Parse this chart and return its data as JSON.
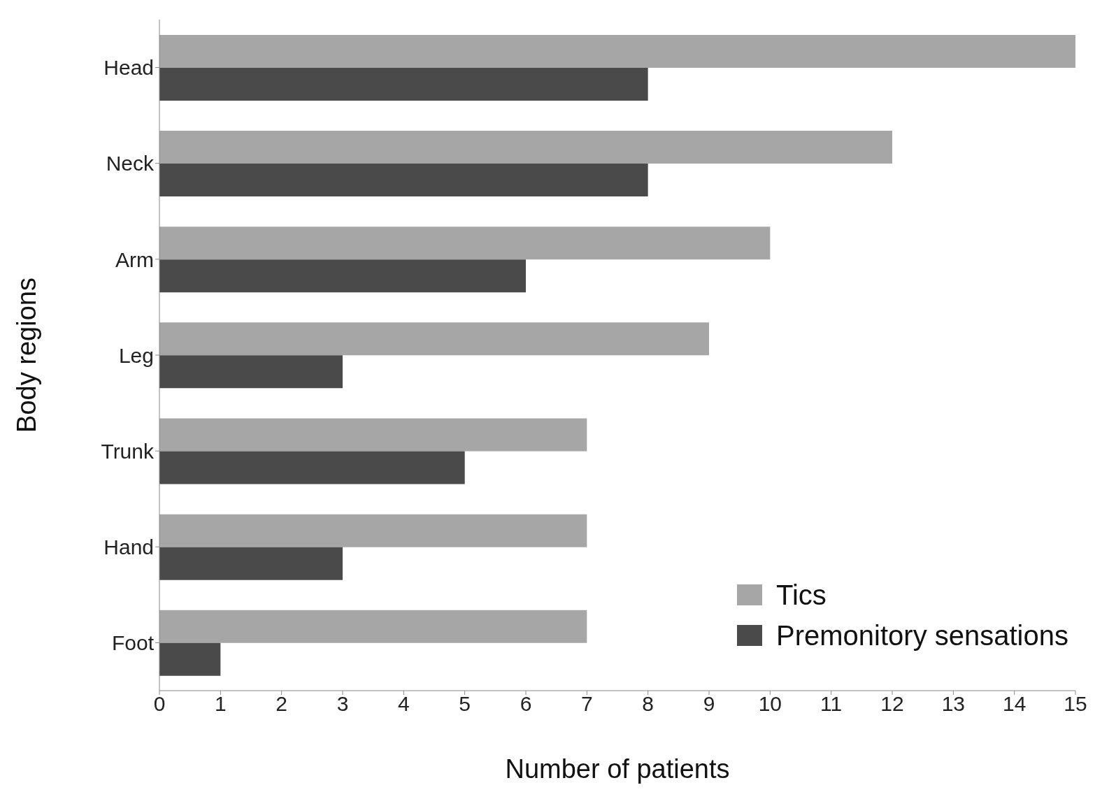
{
  "chart_data": {
    "type": "bar",
    "orientation": "horizontal",
    "xlabel": "Number of patients",
    "ylabel": "Body regions",
    "categories": [
      "Head",
      "Neck",
      "Arm",
      "Leg",
      "Trunk",
      "Hand",
      "Foot"
    ],
    "series": [
      {
        "name": "Tics",
        "color": "#a6a6a6",
        "values": [
          15,
          12,
          10,
          9,
          7,
          7,
          7
        ]
      },
      {
        "name": "Premonitory sensations",
        "color": "#4a4a4a",
        "values": [
          8,
          8,
          6,
          3,
          5,
          3,
          1
        ]
      }
    ],
    "xlim": [
      0,
      15
    ],
    "xticks": [
      0,
      1,
      2,
      3,
      4,
      5,
      6,
      7,
      8,
      9,
      10,
      11,
      12,
      13,
      14,
      15
    ],
    "grid": false,
    "legend": "bottom right"
  }
}
